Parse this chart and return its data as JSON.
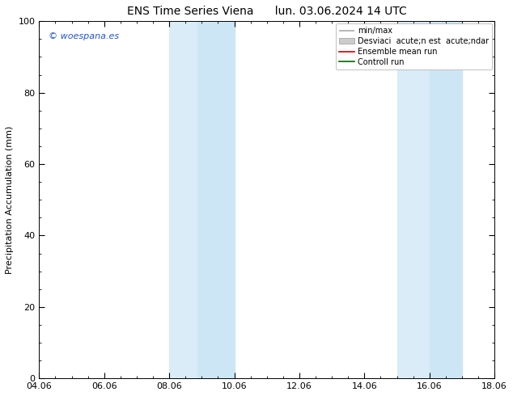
{
  "title_left": "ENS Time Series Viena",
  "title_right": "lun. 03.06.2024 14 UTC",
  "ylabel": "Precipitation Accumulation (mm)",
  "ylim": [
    0,
    100
  ],
  "xlim": [
    0,
    14
  ],
  "xtick_labels": [
    "04.06",
    "06.06",
    "08.06",
    "10.06",
    "12.06",
    "14.06",
    "16.06",
    "18.06"
  ],
  "xtick_positions": [
    0,
    2,
    4,
    6,
    8,
    10,
    12,
    14
  ],
  "ytick_labels": [
    "0",
    "20",
    "40",
    "60",
    "80",
    "100"
  ],
  "ytick_positions": [
    0,
    20,
    40,
    60,
    80,
    100
  ],
  "shaded_regions": [
    {
      "xmin": 4.0,
      "xmax": 4.857,
      "color": "#ddeef8"
    },
    {
      "xmin": 4.857,
      "xmax": 6.0,
      "color": "#cce4f5"
    },
    {
      "xmin": 11.0,
      "xmax": 12.0,
      "color": "#ddeef8"
    },
    {
      "xmin": 12.0,
      "xmax": 13.0,
      "color": "#cce4f5"
    }
  ],
  "watermark": "© woespana.es",
  "watermark_color": "#2255cc",
  "legend_label_minmax": "min/max",
  "legend_label_std": "Desviaci  acute;n est  acute;ndar",
  "legend_label_ensemble": "Ensemble mean run",
  "legend_label_control": "Controll run",
  "color_minmax": "#aaaaaa",
  "color_std": "#cccccc",
  "color_ensemble": "#cc0000",
  "color_control": "#006600",
  "bg_color": "#ffffff",
  "title_fontsize": 10,
  "tick_fontsize": 8,
  "ylabel_fontsize": 8,
  "legend_fontsize": 7
}
